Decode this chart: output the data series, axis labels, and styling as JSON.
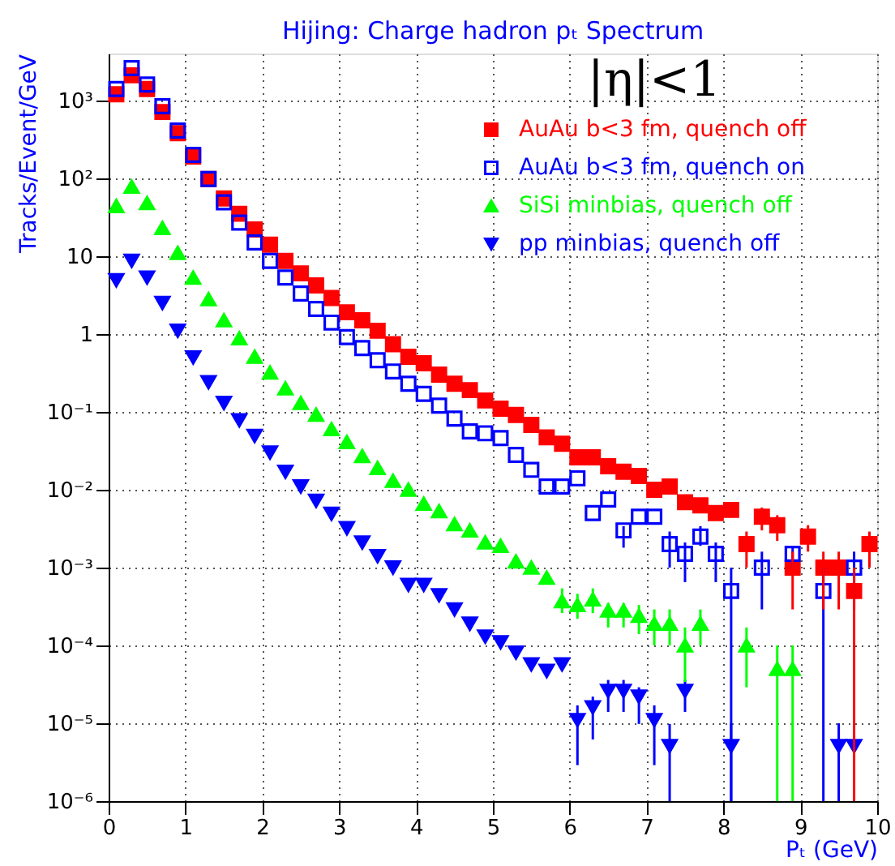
{
  "chart_data": {
    "type": "scatter",
    "title": "Hijing: Charge hadron pₜ Spectrum",
    "xlabel": "Pₜ (GeV)",
    "ylabel": "Tracks/Event/GeV",
    "annotations": [
      "|η|<1"
    ],
    "x": [
      0.1,
      0.3,
      0.5,
      0.7,
      0.9,
      1.1,
      1.3,
      1.5,
      1.7,
      1.9,
      2.1,
      2.3,
      2.5,
      2.7,
      2.9,
      3.1,
      3.3,
      3.5,
      3.7,
      3.9,
      4.1,
      4.3,
      4.5,
      4.7,
      4.9,
      5.1,
      5.3,
      5.5,
      5.7,
      5.9,
      6.1,
      6.3,
      6.5,
      6.7,
      6.9,
      7.1,
      7.3,
      7.5,
      7.7,
      7.9,
      8.1,
      8.3,
      8.5,
      8.7,
      8.9,
      9.1,
      9.3,
      9.5,
      9.7,
      9.9
    ],
    "series": [
      {
        "name": "AuAu b<3 fm, quench off",
        "color": "#ff0000",
        "marker": "square",
        "values": [
          1200,
          2100,
          1400,
          710,
          380,
          190,
          98,
          55,
          35,
          22,
          14,
          8.7,
          6.0,
          4.2,
          2.9,
          1.9,
          1.5,
          1.1,
          0.74,
          0.51,
          0.42,
          0.3,
          0.23,
          0.19,
          0.14,
          0.11,
          0.091,
          0.068,
          0.047,
          0.039,
          0.026,
          0.026,
          0.02,
          0.017,
          0.015,
          0.01,
          0.011,
          0.0069,
          0.0063,
          0.005,
          0.0055,
          0.002,
          0.0045,
          0.0035,
          0.001,
          0.0025,
          0.001,
          0.001,
          0.0005,
          0.002
        ],
        "errors": [
          null,
          null,
          null,
          null,
          null,
          null,
          null,
          null,
          null,
          null,
          null,
          null,
          null,
          null,
          null,
          null,
          null,
          null,
          null,
          null,
          null,
          null,
          null,
          null,
          null,
          null,
          null,
          null,
          null,
          null,
          null,
          null,
          null,
          null,
          null,
          null,
          null,
          null,
          null,
          null,
          null,
          [
            0.001,
            0.0029
          ],
          [
            0.003,
            0.0059
          ],
          [
            0.0022,
            0.0047
          ],
          [
            0.00029,
            0.0016
          ],
          [
            0.0016,
            0.0035
          ],
          [
            0.00029,
            0.0016
          ],
          [
            0.00029,
            0.0016
          ],
          [
            1e-06,
            0.001
          ],
          [
            0.001,
            0.0029
          ]
        ]
      },
      {
        "name": "AuAu b<3 fm, quench on",
        "color": "#0000ff",
        "marker": "square-open",
        "values": [
          1400,
          2600,
          1600,
          840,
          410,
          200,
          98,
          49,
          27,
          15,
          8.7,
          5.3,
          3.3,
          2.1,
          1.4,
          0.91,
          0.66,
          0.46,
          0.33,
          0.23,
          0.17,
          0.12,
          0.082,
          0.056,
          0.053,
          0.046,
          0.028,
          0.018,
          0.011,
          0.011,
          0.014,
          0.005,
          0.0075,
          0.003,
          0.0045,
          0.0045,
          0.002,
          0.0015,
          0.0025,
          0.0015,
          0.0005,
          null,
          0.001,
          null,
          0.0015,
          null,
          0.0005,
          null,
          0.001,
          null
        ],
        "errors": [
          null,
          null,
          null,
          null,
          null,
          null,
          null,
          null,
          null,
          null,
          null,
          null,
          null,
          null,
          null,
          null,
          null,
          null,
          null,
          null,
          null,
          null,
          null,
          null,
          null,
          null,
          null,
          null,
          null,
          null,
          null,
          null,
          null,
          [
            0.0018,
            0.0034
          ],
          null,
          null,
          [
            0.001,
            0.0029
          ],
          [
            0.00065,
            0.0021
          ],
          [
            0.0019,
            0.0034
          ],
          [
            0.00065,
            0.0021
          ],
          [
            1e-06,
            0.001
          ],
          null,
          [
            0.00029,
            0.0016
          ],
          null,
          [
            0.001,
            0.0019
          ],
          null,
          [
            1e-06,
            0.001
          ],
          null,
          [
            0.00029,
            0.0016
          ],
          null
        ]
      },
      {
        "name": "SiSi minbias, quench off",
        "color": "#00ff00",
        "marker": "triangle",
        "values": [
          44,
          78,
          48,
          23,
          11,
          5.3,
          2.8,
          1.5,
          0.88,
          0.51,
          0.32,
          0.2,
          0.13,
          0.092,
          0.06,
          0.041,
          0.027,
          0.019,
          0.013,
          0.01,
          0.0066,
          0.0053,
          0.0036,
          0.003,
          0.0021,
          0.0019,
          0.0012,
          0.001,
          0.00074,
          0.00037,
          0.00033,
          0.00039,
          0.00028,
          0.00028,
          0.00024,
          0.00019,
          0.00019,
          0.0001,
          0.00019,
          null,
          null,
          0.0001,
          null,
          5e-05,
          5e-05,
          null,
          null,
          null,
          null,
          null
        ],
        "errors": [
          null,
          null,
          null,
          null,
          null,
          null,
          null,
          null,
          null,
          null,
          null,
          null,
          null,
          null,
          null,
          null,
          null,
          null,
          null,
          null,
          null,
          null,
          null,
          null,
          null,
          null,
          null,
          null,
          null,
          [
            0.00026,
            0.00054
          ],
          [
            0.00022,
            0.00046
          ],
          [
            0.00026,
            0.00054
          ],
          [
            0.00017,
            0.00035
          ],
          [
            0.00017,
            0.00035
          ],
          [
            0.00014,
            0.00033
          ],
          [
            0.0001,
            0.00029
          ],
          [
            0.0001,
            0.00029
          ],
          [
            3.4e-05,
            0.00017
          ],
          [
            0.0001,
            0.00029
          ],
          null,
          null,
          [
            2.9e-05,
            0.00017
          ],
          null,
          [
            1e-06,
            0.0001
          ],
          [
            1e-06,
            0.0001
          ],
          null,
          null,
          null,
          null,
          null
        ]
      },
      {
        "name": "pp minbias, quench off",
        "color": "#0000ff",
        "marker": "triangle-down",
        "values": [
          4.9,
          8.7,
          5.3,
          2.5,
          1.1,
          0.5,
          0.24,
          0.13,
          0.078,
          0.049,
          0.03,
          0.017,
          0.011,
          0.0072,
          0.0049,
          0.0032,
          0.0021,
          0.0014,
          0.001,
          0.0006,
          0.0006,
          0.00044,
          0.00029,
          0.00019,
          0.00013,
          0.00011,
          8.1e-05,
          5.7e-05,
          4.7e-05,
          5.7e-05,
          1.1e-05,
          1.6e-05,
          2.6e-05,
          2.6e-05,
          2.2e-05,
          1.1e-05,
          5.1e-06,
          2.6e-05,
          null,
          null,
          5.1e-06,
          null,
          null,
          null,
          null,
          null,
          null,
          5.1e-06,
          5.1e-06,
          null
        ],
        "errors": [
          null,
          null,
          null,
          null,
          null,
          null,
          null,
          null,
          null,
          null,
          null,
          null,
          null,
          null,
          null,
          null,
          null,
          null,
          null,
          null,
          null,
          null,
          null,
          null,
          null,
          null,
          null,
          null,
          null,
          null,
          [
            2.9e-06,
            1.7e-05
          ],
          [
            6.2e-06,
            2.2e-05
          ],
          [
            1.4e-05,
            3.6e-05
          ],
          [
            1.4e-05,
            3.6e-05
          ],
          [
            9.8e-06,
            2.9e-05
          ],
          [
            2.9e-06,
            1.7e-05
          ],
          [
            1e-06,
            9.8e-06
          ],
          [
            1.4e-05,
            3.6e-05
          ],
          null,
          null,
          [
            1e-06,
            1e-05
          ],
          null,
          null,
          null,
          null,
          null,
          null,
          [
            1e-06,
            1e-05
          ],
          null,
          null
        ]
      }
    ],
    "xlim": [
      0,
      10
    ],
    "xticks": [
      0,
      1,
      2,
      3,
      4,
      5,
      6,
      7,
      8,
      9,
      10
    ],
    "ylim": [
      1e-06,
      4000
    ],
    "log": true,
    "yticks": [
      {
        "value": 1e-06,
        "label": "10⁻⁶"
      },
      {
        "value": 1e-05,
        "label": "10⁻⁵"
      },
      {
        "value": 0.0001,
        "label": "10⁻⁴"
      },
      {
        "value": 0.001,
        "label": "10⁻³"
      },
      {
        "value": 0.01,
        "label": "10⁻²"
      },
      {
        "value": 0.1,
        "label": "10⁻¹"
      },
      1,
      10,
      {
        "value": 100,
        "label": "10²"
      },
      {
        "value": 1000,
        "label": "10³"
      }
    ],
    "grid": true,
    "legend": "top right"
  }
}
